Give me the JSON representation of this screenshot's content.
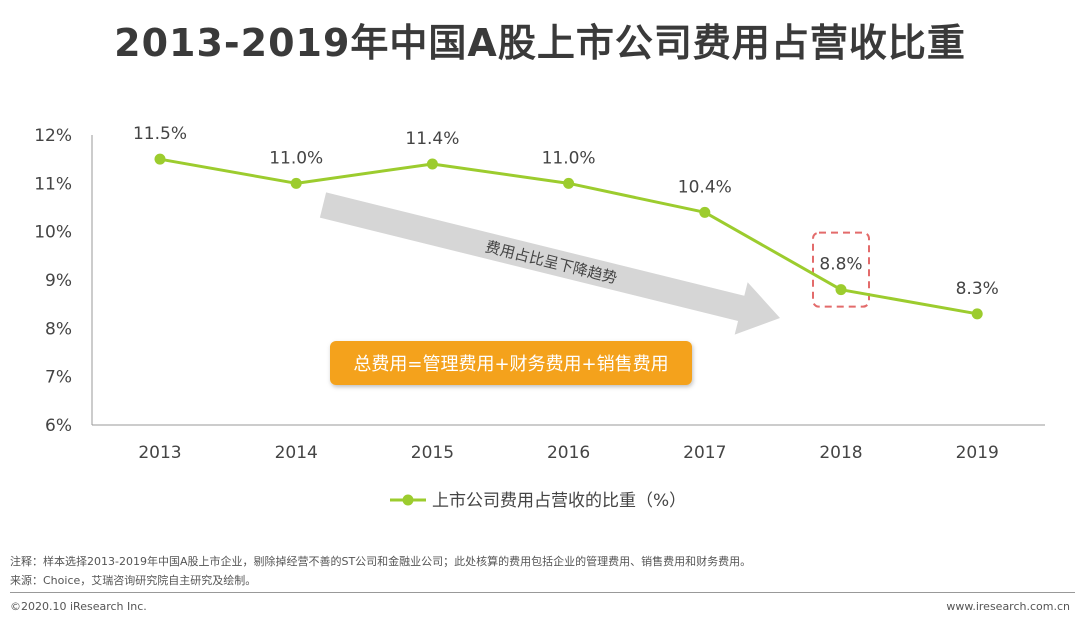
{
  "title": "2013-2019年中国A股上市公司费用占营收比重",
  "chart_data": {
    "type": "line",
    "x": [
      "2013",
      "2014",
      "2015",
      "2016",
      "2017",
      "2018",
      "2019"
    ],
    "series": [
      {
        "name": "上市公司费用占营收的比重（%）",
        "values": [
          11.5,
          11.0,
          11.4,
          11.0,
          10.4,
          8.8,
          8.3
        ],
        "labels": [
          "11.5%",
          "11.0%",
          "11.4%",
          "11.0%",
          "10.4%",
          "8.8%",
          "8.3%"
        ]
      }
    ],
    "y_ticks": [
      "12%",
      "11%",
      "10%",
      "9%",
      "8%",
      "7%",
      "6%"
    ],
    "ylim": [
      6,
      12
    ],
    "series_color": "#9ccc2e",
    "legend_position": "bottom",
    "grid": false,
    "highlight_category": "2018",
    "highlight_color": "#e36b6b",
    "trend_arrow_label": "费用占比呈下降趋势",
    "trend_arrow_color": "#d6d6d6",
    "formula_label": "总费用=管理费用+财务费用+销售费用",
    "formula_color": "#f4a21e"
  },
  "notes": {
    "note_line": "注释：样本选择2013-2019年中国A股上市企业，剔除掉经营不善的ST公司和金融业公司；此处核算的费用包括企业的管理费用、销售费用和财务费用。",
    "source_line": "来源：Choice，艾瑞咨询研究院自主研究及绘制。"
  },
  "footer": {
    "copyright": "©2020.10 iResearch Inc.",
    "website": "www.iresearch.com.cn"
  }
}
